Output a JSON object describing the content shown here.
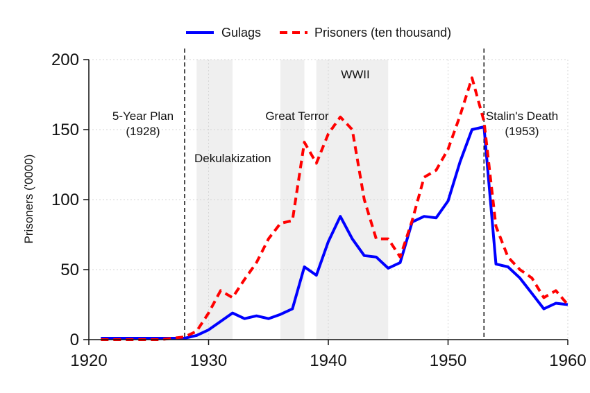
{
  "chart_data": {
    "type": "line",
    "title": "",
    "xlabel": "",
    "ylabel": "Prisoners ('0000)",
    "xlim": [
      1920,
      1960
    ],
    "ylim": [
      0,
      200
    ],
    "x_ticks": [
      "1920",
      "1930",
      "1940",
      "1950",
      "1960"
    ],
    "y_ticks": [
      "0",
      "50",
      "100",
      "150",
      "200"
    ],
    "grid": true,
    "legend_position": "top",
    "series": [
      {
        "name": "Gulags",
        "color": "#0000ff",
        "style": "solid",
        "x": [
          1921,
          1922,
          1923,
          1924,
          1925,
          1926,
          1927,
          1928,
          1929,
          1930,
          1931,
          1932,
          1933,
          1934,
          1935,
          1936,
          1937,
          1938,
          1939,
          1940,
          1941,
          1942,
          1943,
          1944,
          1945,
          1946,
          1947,
          1948,
          1949,
          1950,
          1951,
          1952,
          1953,
          1954,
          1955,
          1956,
          1957,
          1958,
          1959,
          1960
        ],
        "values": [
          1,
          1,
          1,
          1,
          1,
          1,
          1,
          1,
          3,
          7,
          13,
          19,
          15,
          17,
          15,
          18,
          22,
          52,
          46,
          70,
          88,
          72,
          60,
          59,
          51,
          55,
          84,
          88,
          87,
          99,
          127,
          150,
          152,
          54,
          52,
          44,
          33,
          22,
          26,
          25
        ]
      },
      {
        "name": "Prisoners (ten thousand)",
        "color": "#ff0000",
        "style": "dashed",
        "x": [
          1921,
          1922,
          1923,
          1924,
          1925,
          1926,
          1927,
          1928,
          1929,
          1930,
          1931,
          1932,
          1933,
          1934,
          1935,
          1936,
          1937,
          1938,
          1939,
          1940,
          1941,
          1942,
          1943,
          1944,
          1945,
          1946,
          1947,
          1948,
          1949,
          1950,
          1951,
          1952,
          1953,
          1954,
          1955,
          1956,
          1957,
          1958,
          1959,
          1960
        ],
        "values": [
          0,
          0,
          0,
          0,
          0,
          0,
          1,
          2,
          6,
          19,
          35,
          30,
          43,
          55,
          72,
          83,
          85,
          141,
          126,
          147,
          159,
          150,
          100,
          72,
          72,
          59,
          85,
          116,
          121,
          136,
          160,
          187,
          156,
          81,
          59,
          50,
          44,
          30,
          35,
          25
        ]
      }
    ],
    "shaded_regions": [
      {
        "x_start": 1929,
        "x_end": 1932,
        "label": "Dekulakization"
      },
      {
        "x_start": 1936,
        "x_end": 1938,
        "label": "Great Terror"
      },
      {
        "x_start": 1939,
        "x_end": 1945,
        "label": "WWII"
      }
    ],
    "vertical_lines": [
      {
        "x": 1928,
        "label_line1": "5-Year Plan",
        "label_line2": "(1928)"
      },
      {
        "x": 1953,
        "label_line1": "Stalin's Death",
        "label_line2": "(1953)"
      }
    ]
  }
}
